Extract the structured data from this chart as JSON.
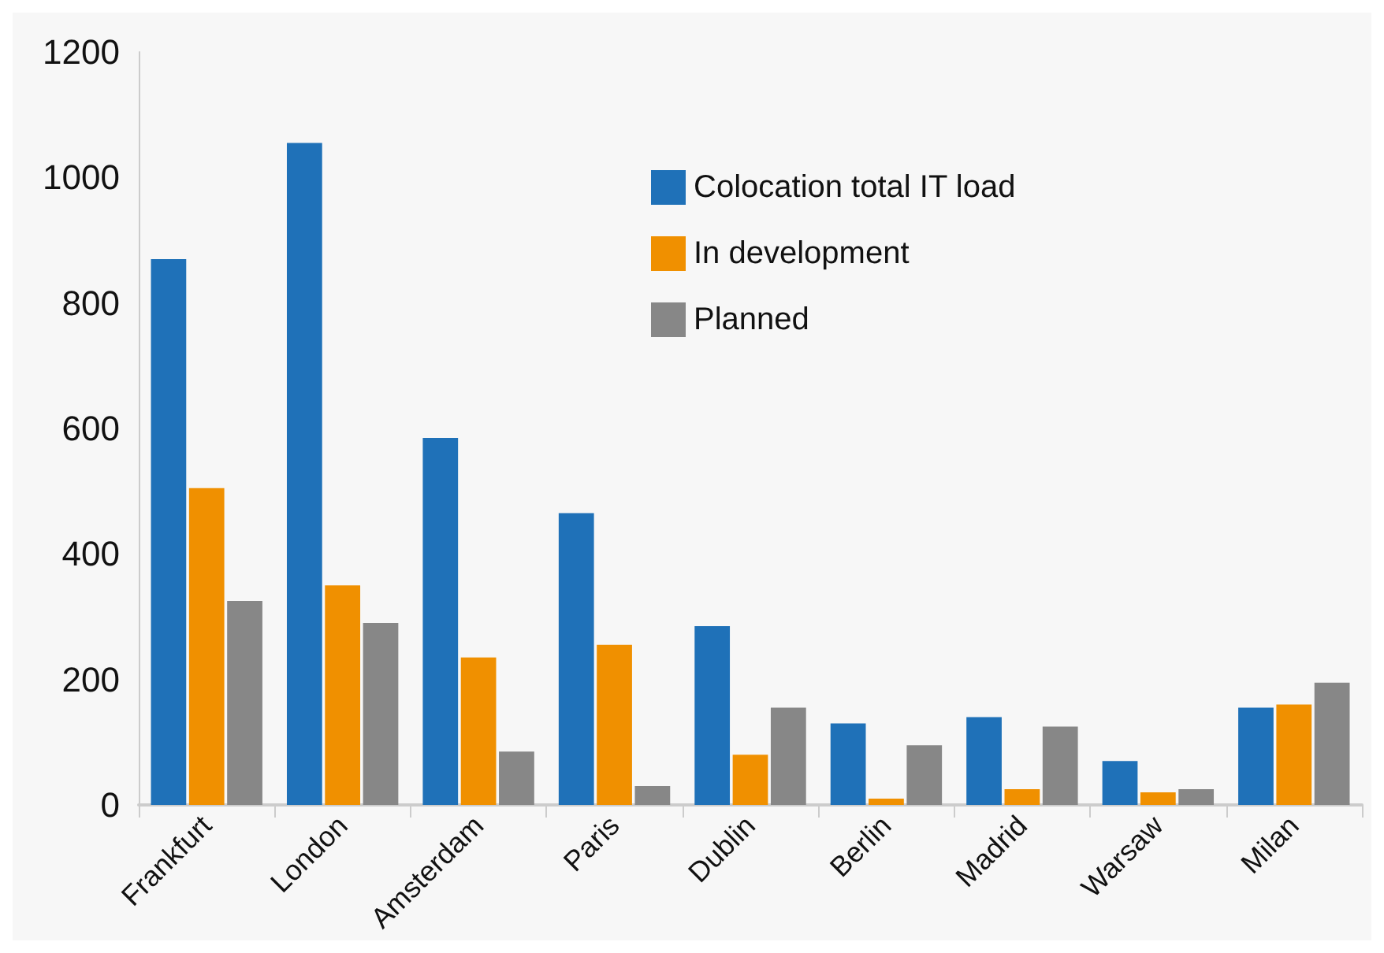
{
  "chart_data": {
    "type": "bar",
    "categories": [
      "Frankfurt",
      "London",
      "Amsterdam",
      "Paris",
      "Dublin",
      "Berlin",
      "Madrid",
      "Warsaw",
      "Milan"
    ],
    "series": [
      {
        "name": "Colocation total IT load",
        "color": "#1f71b8",
        "values": [
          870,
          1055,
          585,
          465,
          285,
          130,
          140,
          70,
          155
        ]
      },
      {
        "name": "In development",
        "color": "#f09000",
        "values": [
          505,
          350,
          235,
          255,
          80,
          10,
          25,
          20,
          160
        ]
      },
      {
        "name": "Planned",
        "color": "#878787",
        "values": [
          325,
          290,
          85,
          30,
          155,
          95,
          125,
          25,
          195
        ]
      }
    ],
    "ylim": [
      0,
      1200
    ],
    "yticks": [
      0,
      200,
      400,
      600,
      800,
      1000,
      1200
    ],
    "grid": false,
    "legend": "top right"
  }
}
